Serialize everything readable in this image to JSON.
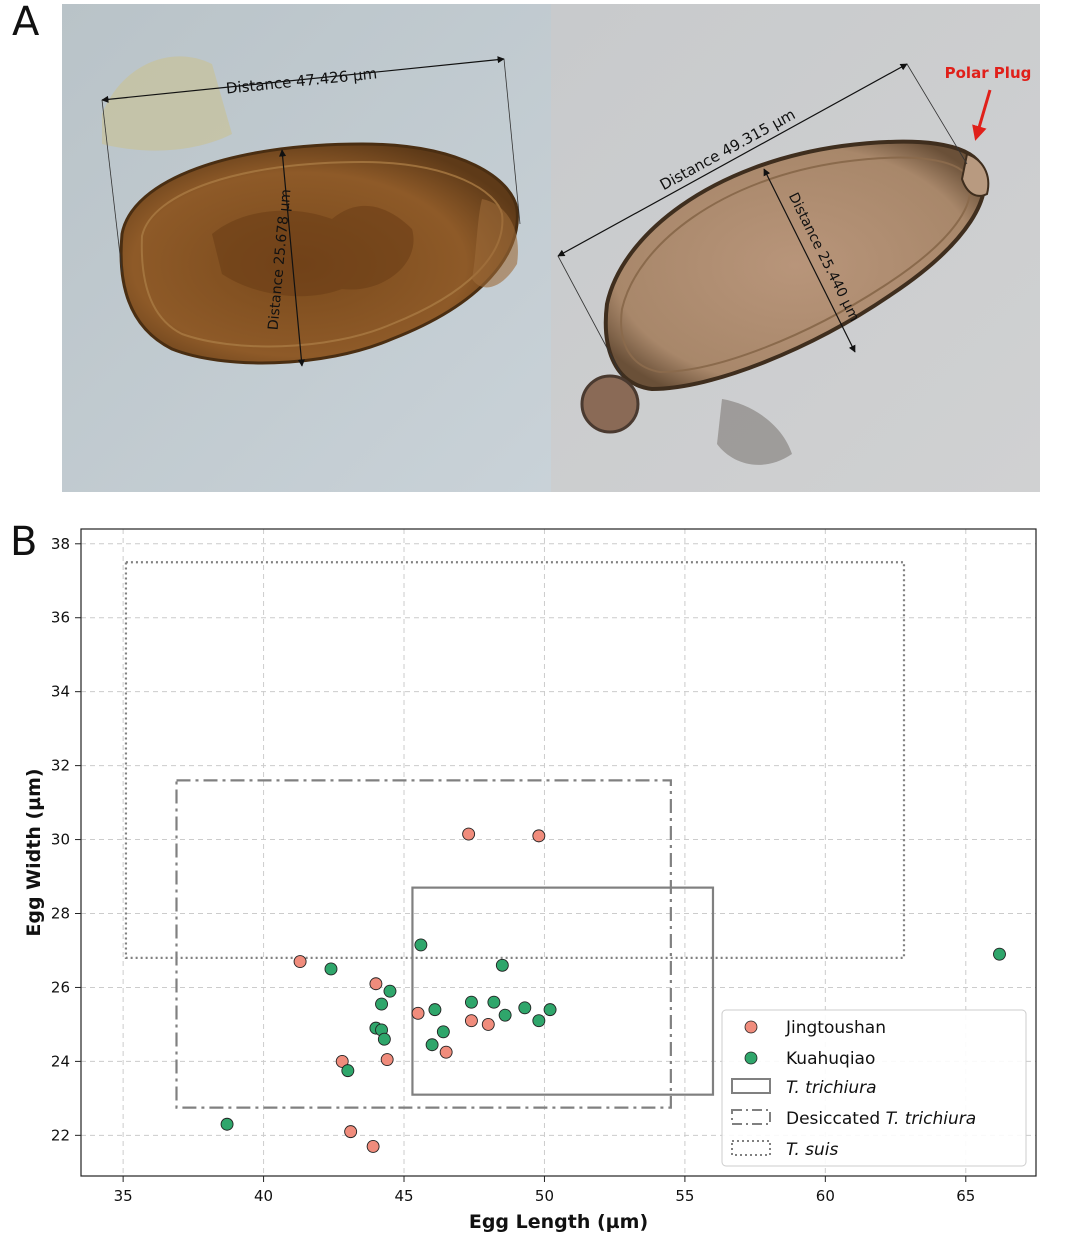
{
  "panels": {
    "a": "A",
    "b": "B"
  },
  "micrographs": {
    "left": {
      "length_label": "Distance 47.426 µm",
      "width_label": "Distance 25.678 µm"
    },
    "right": {
      "length_label": "Distance 49.315 µm",
      "width_label": "Distance 25.440 µm",
      "callout": "Polar Plug"
    }
  },
  "chart_data": {
    "type": "scatter",
    "xlabel": "Egg Length (µm)",
    "ylabel": "Egg Width (µm)",
    "xlim": [
      33.5,
      67.5
    ],
    "ylim": [
      20.9,
      38.4
    ],
    "xticks": [
      35,
      40,
      45,
      50,
      55,
      60,
      65
    ],
    "yticks": [
      22,
      24,
      26,
      28,
      30,
      32,
      34,
      36,
      38
    ],
    "grid": true,
    "legend_position": "lower-right",
    "series": [
      {
        "name": "Jingtoushan",
        "color": "#f08c7c",
        "points": [
          [
            41.3,
            26.7
          ],
          [
            42.8,
            24.0
          ],
          [
            43.1,
            22.1
          ],
          [
            43.9,
            21.7
          ],
          [
            44.0,
            26.1
          ],
          [
            44.4,
            24.05
          ],
          [
            45.5,
            25.3
          ],
          [
            46.5,
            24.25
          ],
          [
            47.3,
            30.15
          ],
          [
            47.4,
            25.1
          ],
          [
            48.0,
            25.0
          ],
          [
            49.8,
            30.1
          ]
        ]
      },
      {
        "name": "Kuahuqiao",
        "color": "#2fa66b",
        "points": [
          [
            38.7,
            22.3
          ],
          [
            42.4,
            26.5
          ],
          [
            43.0,
            23.75
          ],
          [
            44.0,
            24.9
          ],
          [
            44.2,
            25.55
          ],
          [
            44.2,
            24.85
          ],
          [
            44.3,
            24.6
          ],
          [
            44.5,
            25.9
          ],
          [
            45.6,
            27.15
          ],
          [
            46.0,
            24.45
          ],
          [
            46.1,
            25.4
          ],
          [
            46.4,
            24.8
          ],
          [
            47.4,
            25.6
          ],
          [
            48.2,
            25.6
          ],
          [
            48.5,
            26.6
          ],
          [
            48.6,
            25.25
          ],
          [
            49.3,
            25.45
          ],
          [
            49.8,
            25.1
          ],
          [
            50.2,
            25.4
          ],
          [
            66.2,
            26.9
          ]
        ]
      }
    ],
    "regions": [
      {
        "name": "T. trichiura",
        "style": "solid",
        "x": [
          45.3,
          56.0
        ],
        "y": [
          23.1,
          28.7
        ]
      },
      {
        "name": "Desiccated T. trichiura",
        "style": "dashdot",
        "x": [
          36.9,
          54.5
        ],
        "y": [
          22.75,
          31.6
        ]
      },
      {
        "name": "T. suis",
        "style": "dotted",
        "x": [
          35.1,
          62.8
        ],
        "y": [
          26.8,
          37.5
        ]
      }
    ],
    "legend": {
      "jingtoushan": "Jingtoushan",
      "kuahuqiao": "Kuahuqiao",
      "trichiura_prefix": "",
      "trichiura_italic": "T.  trichiura",
      "desiccated_prefix": "Desiccated ",
      "desiccated_italic": "T.  trichiura",
      "suis_prefix": "",
      "suis_italic": "T.  suis"
    }
  },
  "colors": {
    "axis": "#222222",
    "grid": "#cccccc",
    "region": "#808080",
    "callout": "#e0201a"
  }
}
